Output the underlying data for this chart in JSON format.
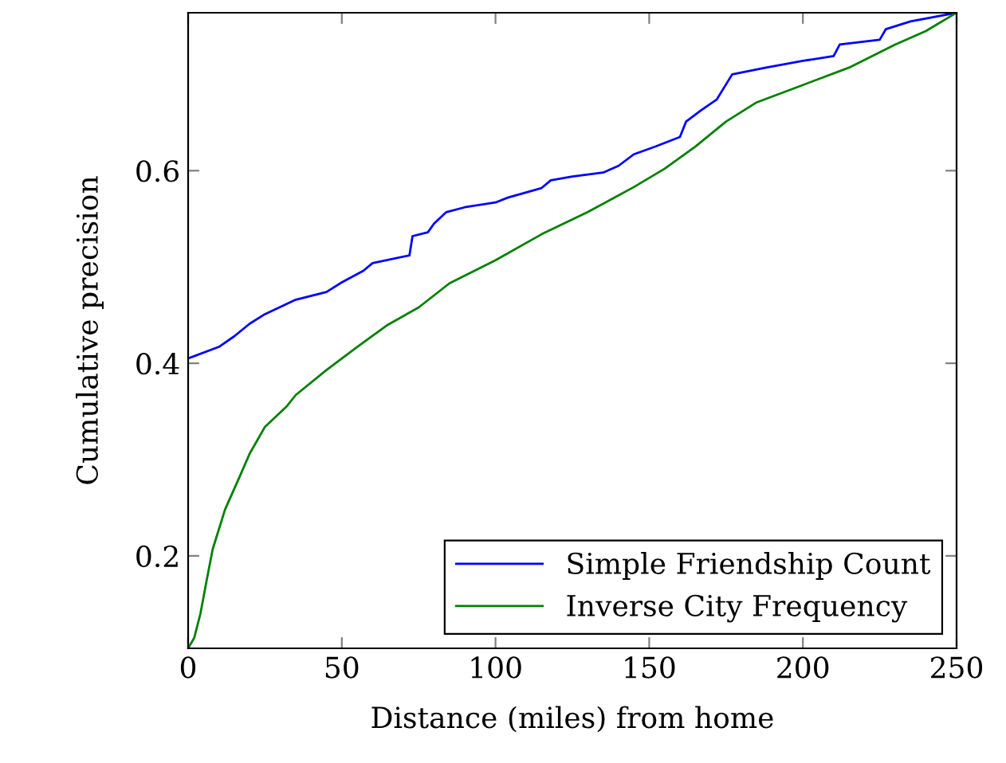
{
  "chart_data": {
    "type": "line",
    "xlabel": "Distance (miles) from home",
    "ylabel": "Cumulative precision",
    "xlim": [
      0,
      250
    ],
    "ylim": [
      0.104,
      0.764
    ],
    "xticks": [
      0,
      50,
      100,
      150,
      200,
      250
    ],
    "yticks": [
      0.2,
      0.4,
      0.6
    ],
    "grid": false,
    "legend": "bottom right",
    "series": [
      {
        "name": "Simple Friendship Count",
        "color": "#0000ff",
        "x": [
          0,
          10,
          15,
          20,
          25,
          35,
          45,
          50,
          57,
          60,
          72,
          73,
          78,
          80,
          84,
          90,
          100,
          104,
          115,
          118,
          125,
          135,
          140,
          145,
          152,
          160,
          162,
          167,
          172,
          177,
          188,
          200,
          210,
          212,
          225,
          227,
          235,
          250
        ],
        "values": [
          0.405,
          0.417,
          0.428,
          0.441,
          0.451,
          0.466,
          0.474,
          0.484,
          0.496,
          0.504,
          0.512,
          0.532,
          0.536,
          0.545,
          0.557,
          0.562,
          0.567,
          0.572,
          0.582,
          0.59,
          0.594,
          0.598,
          0.605,
          0.617,
          0.625,
          0.635,
          0.651,
          0.663,
          0.674,
          0.7,
          0.707,
          0.714,
          0.719,
          0.731,
          0.736,
          0.747,
          0.755,
          0.764
        ]
      },
      {
        "name": "Inverse City Frequency",
        "color": "#008000",
        "x": [
          0,
          2,
          4,
          6,
          8,
          12,
          17,
          20,
          25,
          32,
          35,
          45,
          55,
          65,
          75,
          85,
          100,
          115,
          130,
          145,
          155,
          165,
          175,
          185,
          200,
          215,
          230,
          240,
          250
        ],
        "values": [
          0.104,
          0.115,
          0.14,
          0.174,
          0.207,
          0.248,
          0.284,
          0.306,
          0.334,
          0.355,
          0.367,
          0.393,
          0.417,
          0.44,
          0.458,
          0.483,
          0.507,
          0.534,
          0.557,
          0.583,
          0.602,
          0.625,
          0.651,
          0.671,
          0.689,
          0.707,
          0.731,
          0.745,
          0.764
        ]
      }
    ]
  }
}
